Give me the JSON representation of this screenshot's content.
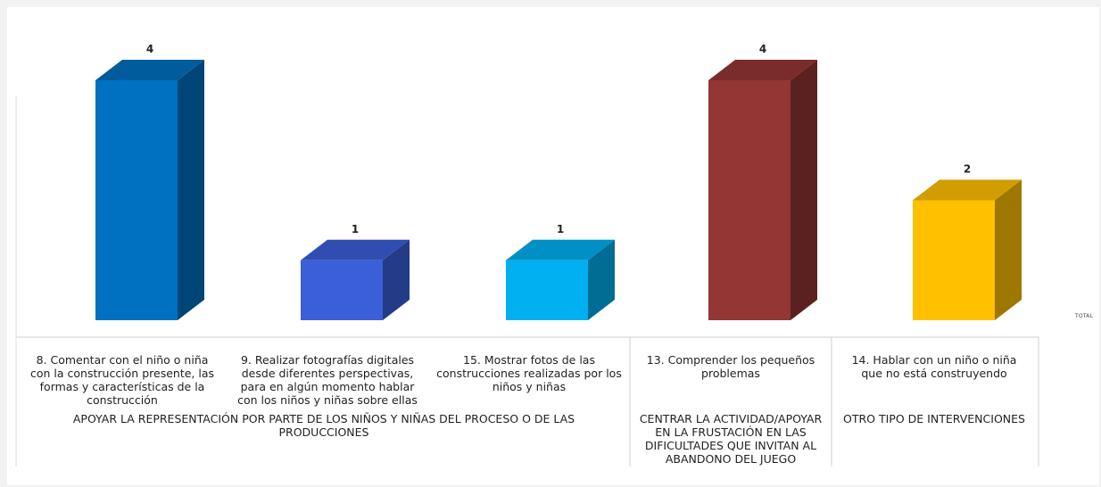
{
  "chart_data": {
    "type": "bar",
    "categories": [
      "8. Comentar con el niño o niña\ncon la construcción presente, las\nformas y características de la\nconstrucción",
      "9. Realizar fotografías digitales\ndesde diferentes perspectivas,\npara en algún momento hablar\ncon los niños y niñas sobre ellas",
      "15. Mostrar fotos de las\nconstrucciones realizadas por los\nniños y niñas",
      "13. Comprender los pequeños\nproblemas",
      "14.  Hablar con un niño o niña\nque no está construyendo"
    ],
    "groups": [
      "APOYAR LA REPRESENTACIÓN POR PARTE DE LOS NIÑOS Y NIÑAS DEL PROCESO O DE LAS\nPRODUCCIONES",
      "CENTRAR LA ACTIVIDAD/APOYAR\nEN LA FRUSTACIÓN EN LAS\nDIFICULTADES QUE INVITAN AL\nABANDONO DEL JUEGO",
      "OTRO TIPO DE INTERVENCIONES"
    ],
    "series": [
      {
        "name": "TOTAL",
        "values": [
          4,
          1,
          1,
          4,
          2
        ]
      }
    ],
    "data_labels": [
      "4",
      "1",
      "1",
      "4",
      "2"
    ],
    "bar_colors": [
      "#0070c0",
      "#3a5fd9",
      "#00b0f0",
      "#933634",
      "#ffc000"
    ],
    "ylim": [
      0,
      4
    ],
    "legend_position": "right",
    "grid": false,
    "style": "3d-column"
  }
}
